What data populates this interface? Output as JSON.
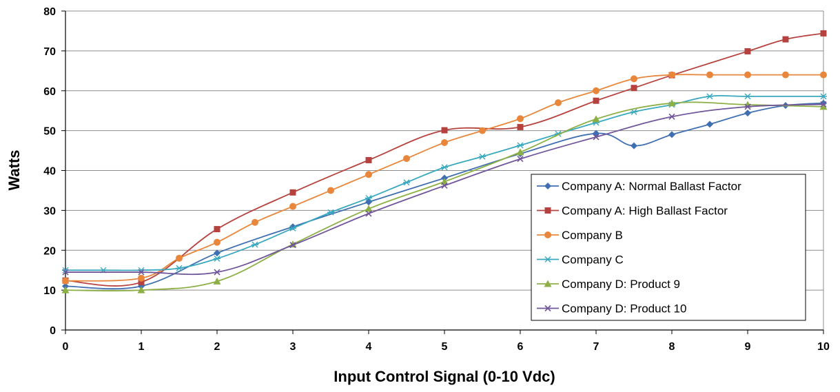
{
  "chart_data": {
    "type": "line",
    "xlabel": "Input Control Signal (0-10 Vdc)",
    "ylabel": "Watts",
    "xlim": [
      0,
      10
    ],
    "ylim": [
      0,
      80
    ],
    "x_ticks": [
      "0",
      "1",
      "2",
      "3",
      "4",
      "5",
      "6",
      "7",
      "8",
      "9",
      "10"
    ],
    "y_ticks": [
      "0",
      "10",
      "20",
      "30",
      "40",
      "50",
      "60",
      "70",
      "80"
    ],
    "grid": "horizontal",
    "legend_position": "bottom-right",
    "series": [
      {
        "name": "Company A: Normal Ballast Factor",
        "color": "#3f6fb0",
        "marker": "diamond",
        "x": [
          0,
          1,
          2,
          3,
          4,
          5,
          6,
          7,
          7.5,
          8,
          8.5,
          9,
          9.5,
          10
        ],
        "y": [
          11,
          11,
          19.3,
          25.9,
          32.1,
          38.1,
          44.2,
          49.3,
          46.2,
          49,
          51.6,
          54.4,
          56.3,
          56.9
        ]
      },
      {
        "name": "Company A: High Ballast Factor",
        "color": "#b5423e",
        "marker": "square",
        "x": [
          0,
          1,
          2,
          3,
          4,
          5,
          6,
          7,
          7.5,
          8,
          9,
          9.5,
          10
        ],
        "y": [
          12.4,
          12,
          25.3,
          34.5,
          42.6,
          50.1,
          50.9,
          57.5,
          60.7,
          63.9,
          69.9,
          72.9,
          74.4
        ]
      },
      {
        "name": "Company B",
        "color": "#e8873b",
        "marker": "circle",
        "x": [
          0,
          1,
          1.5,
          2,
          2.5,
          3,
          3.5,
          4,
          4.5,
          5,
          5.5,
          6,
          6.5,
          7,
          7.5,
          8,
          8.5,
          9,
          9.5,
          10
        ],
        "y": [
          12.3,
          13,
          18,
          22,
          27,
          31,
          35,
          39,
          43,
          47,
          50,
          53,
          57,
          60,
          63,
          64,
          64,
          64,
          64,
          64
        ]
      },
      {
        "name": "Company C",
        "color": "#38a8bf",
        "marker": "asterisk",
        "x": [
          0,
          0.5,
          1,
          1.5,
          2,
          2.5,
          3,
          3.5,
          4,
          4.5,
          5,
          5.5,
          6,
          6.5,
          7,
          7.5,
          8,
          8.5,
          9,
          10
        ],
        "y": [
          15,
          15,
          15,
          15.5,
          17.9,
          21.4,
          25.5,
          29.5,
          33.1,
          37,
          40.8,
          43.5,
          46.3,
          49.2,
          52,
          54.7,
          56.5,
          58.6,
          58.6,
          58.6
        ]
      },
      {
        "name": "Company D: Product 9",
        "color": "#8db046",
        "marker": "triangle",
        "x": [
          0,
          1,
          2,
          3,
          4,
          5,
          6,
          7,
          8,
          9,
          10
        ],
        "y": [
          10,
          10,
          12.2,
          21.5,
          30.4,
          37.2,
          44.6,
          52.9,
          56.9,
          56.5,
          56
        ]
      },
      {
        "name": "Company D: Product 10",
        "color": "#71559b",
        "marker": "x",
        "x": [
          0,
          1,
          2,
          3,
          4,
          5,
          6,
          7,
          8,
          9,
          10
        ],
        "y": [
          14.5,
          14.5,
          14.5,
          21.3,
          29.2,
          36.2,
          42.9,
          48.4,
          53.5,
          56,
          56.6
        ]
      }
    ]
  }
}
